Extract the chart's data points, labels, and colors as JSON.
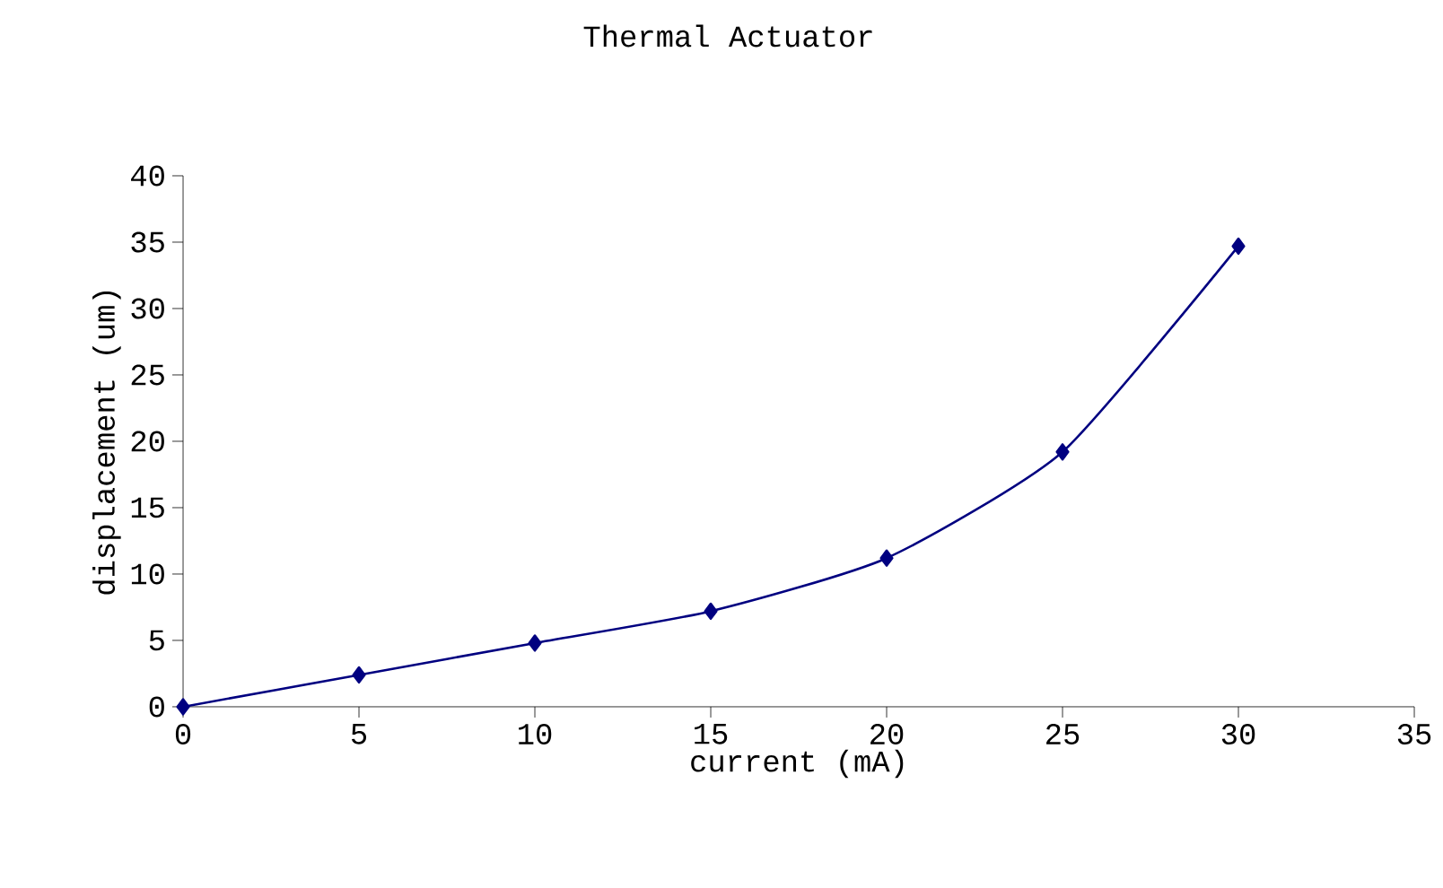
{
  "chart_data": {
    "type": "line",
    "title": "Thermal Actuator",
    "xlabel": "current (mA)",
    "ylabel": "displacement (um)",
    "x": [
      0,
      5,
      10,
      15,
      20,
      25,
      30
    ],
    "series": [
      {
        "color": "#000080",
        "values": [
          0,
          2.4,
          4.8,
          7.2,
          11.2,
          19.2,
          34.7
        ]
      }
    ],
    "xlim": [
      0,
      35
    ],
    "xticks": [
      0,
      5,
      10,
      15,
      20,
      25,
      30,
      35
    ],
    "ylim": [
      0,
      40
    ],
    "yticks": [
      0,
      5,
      10,
      15,
      20,
      25,
      30,
      35,
      40
    ],
    "marker": "diamond",
    "line_style": "solid"
  }
}
